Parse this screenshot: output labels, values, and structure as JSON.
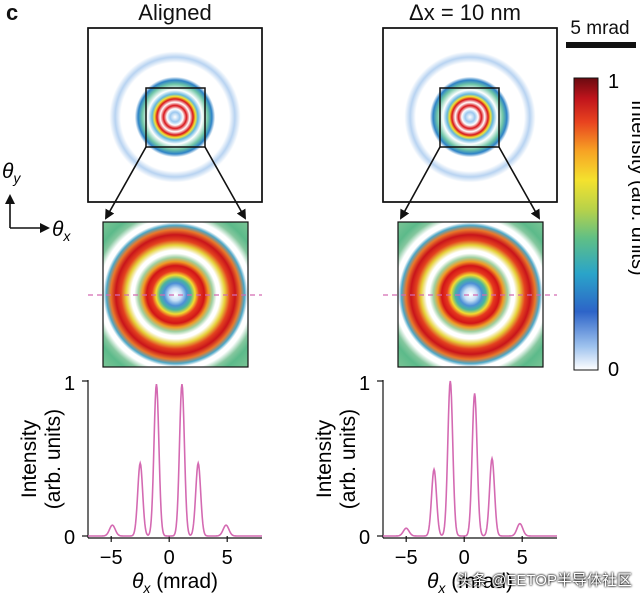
{
  "panel_label": "c",
  "left_title": "Aligned",
  "right_title": "Δx = 10 nm",
  "scale_bar_label": "5 mrad",
  "colorbar": {
    "label": "Intensity (arb. units)",
    "max_label": "1",
    "min_label": "0",
    "colors": [
      "#ffffff",
      "#9fc3ee",
      "#2d64c8",
      "#2aa4c9",
      "#5fbf86",
      "#b7d24a",
      "#f4e22e",
      "#f7a324",
      "#e8421f",
      "#c0141c",
      "#6a0a10"
    ]
  },
  "axis_indicator": {
    "y_label": "θy",
    "x_label": "θx"
  },
  "profiles_axes": {
    "ylabel": "Intensity (arb. units)",
    "xlabel": "θx (mrad)",
    "xticks": [
      "−5",
      "0",
      "5"
    ],
    "yticks": [
      "0",
      "1"
    ]
  },
  "chart_data": [
    {
      "type": "line",
      "xlim": [
        -7,
        8
      ],
      "ylim": [
        0,
        1
      ],
      "peaks": [
        {
          "x": -4.9,
          "y": 0.07,
          "w": 0.35
        },
        {
          "x": -2.5,
          "y": 0.47,
          "w": 0.3
        },
        {
          "x": -1.1,
          "y": 0.98,
          "w": 0.3
        },
        {
          "x": 1.1,
          "y": 0.98,
          "w": 0.3
        },
        {
          "x": 2.5,
          "y": 0.47,
          "w": 0.3
        },
        {
          "x": 4.9,
          "y": 0.07,
          "w": 0.35
        }
      ]
    },
    {
      "type": "line",
      "xlim": [
        -7,
        8
      ],
      "ylim": [
        0,
        1
      ],
      "peaks": [
        {
          "x": -5.0,
          "y": 0.05,
          "w": 0.35
        },
        {
          "x": -2.6,
          "y": 0.43,
          "w": 0.3
        },
        {
          "x": -1.2,
          "y": 1.0,
          "w": 0.3
        },
        {
          "x": 0.9,
          "y": 0.92,
          "w": 0.3
        },
        {
          "x": 2.4,
          "y": 0.5,
          "w": 0.3
        },
        {
          "x": 4.8,
          "y": 0.08,
          "w": 0.35
        }
      ]
    }
  ],
  "watermark": "头条 @EETOP半导体社区"
}
